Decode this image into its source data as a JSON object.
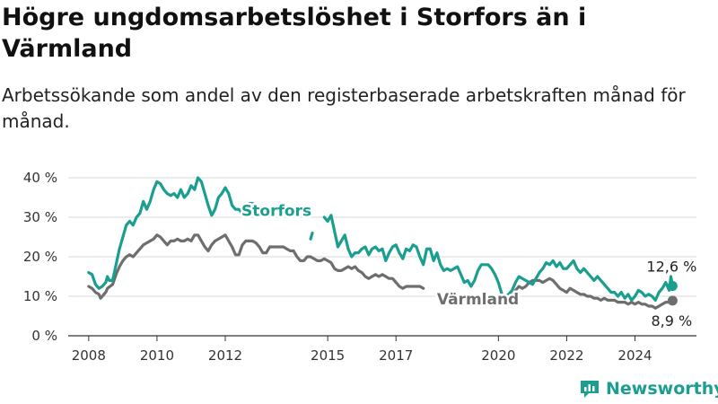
{
  "title": "Högre ungdomsarbetslöshet i Storfors än i Värmland",
  "subtitle": "Arbetssökande som andel av den registerbaserade arbetskraften månad för månad.",
  "brand": {
    "name": "Newsworthy",
    "icon": "newsworthy-logo-icon",
    "color": "#1a9e8f"
  },
  "chart_data": {
    "type": "line",
    "title": "Högre ungdomsarbetslöshet i Storfors än i Värmland",
    "subtitle": "Arbetssökande som andel av den registerbaserade arbetskraften månad för månad.",
    "xlabel": "",
    "ylabel": "",
    "x_ticks": [
      2008,
      2010,
      2012,
      2015,
      2017,
      2020,
      2022,
      2024
    ],
    "y_ticks": [
      "0 %",
      "10 %",
      "20 %",
      "30 %",
      "40 %"
    ],
    "xlim": [
      2007.4,
      2025.8
    ],
    "ylim": [
      0,
      40
    ],
    "grid": "horizontal",
    "legend": "inline labels",
    "series": [
      {
        "name": "Storfors",
        "color": "#1a9e8f",
        "end_label": "12,6 %",
        "points": [
          [
            2008.0,
            16
          ],
          [
            2008.1,
            15.5
          ],
          [
            2008.2,
            13
          ],
          [
            2008.3,
            12
          ],
          [
            2008.4,
            12.5
          ],
          [
            2008.5,
            13.5
          ],
          [
            2008.55,
            15
          ],
          [
            2008.6,
            14
          ],
          [
            2008.7,
            14
          ],
          [
            2008.8,
            18
          ],
          [
            2008.9,
            22
          ],
          [
            2009.0,
            25
          ],
          [
            2009.1,
            28
          ],
          [
            2009.2,
            29
          ],
          [
            2009.3,
            28
          ],
          [
            2009.4,
            30
          ],
          [
            2009.5,
            31
          ],
          [
            2009.6,
            34
          ],
          [
            2009.7,
            32
          ],
          [
            2009.8,
            34
          ],
          [
            2009.9,
            37
          ],
          [
            2010.0,
            39
          ],
          [
            2010.1,
            38.5
          ],
          [
            2010.2,
            37
          ],
          [
            2010.3,
            36
          ],
          [
            2010.4,
            35.5
          ],
          [
            2010.5,
            36
          ],
          [
            2010.6,
            35
          ],
          [
            2010.7,
            37
          ],
          [
            2010.8,
            35
          ],
          [
            2010.9,
            36
          ],
          [
            2011.0,
            38
          ],
          [
            2011.1,
            37
          ],
          [
            2011.2,
            40
          ],
          [
            2011.3,
            39
          ],
          [
            2011.4,
            36
          ],
          [
            2011.5,
            33
          ],
          [
            2011.6,
            30.5
          ],
          [
            2011.7,
            32
          ],
          [
            2011.8,
            35
          ],
          [
            2011.9,
            36
          ],
          [
            2012.0,
            37.5
          ],
          [
            2012.1,
            36
          ],
          [
            2012.2,
            33
          ],
          [
            2012.3,
            32
          ],
          [
            2012.4,
            32
          ],
          [
            2012.5,
            31
          ],
          [
            2012.6,
            32.5
          ],
          [
            2012.7,
            33.5
          ],
          [
            2012.8,
            33.5
          ],
          null,
          [
            2014.5,
            24.5
          ],
          [
            2014.55,
            26
          ],
          null,
          [
            2014.9,
            30
          ],
          [
            2015.0,
            29
          ],
          [
            2015.1,
            30.5
          ],
          [
            2015.2,
            26.5
          ],
          [
            2015.3,
            22.5
          ],
          [
            2015.4,
            24
          ],
          [
            2015.5,
            25.5
          ],
          [
            2015.6,
            22
          ],
          [
            2015.7,
            20
          ],
          [
            2015.8,
            21
          ],
          [
            2015.9,
            21
          ],
          [
            2016.0,
            22
          ],
          [
            2016.1,
            22.5
          ],
          [
            2016.2,
            20.5
          ],
          [
            2016.3,
            22
          ],
          [
            2016.4,
            22.5
          ],
          [
            2016.5,
            21.5
          ],
          [
            2016.6,
            22
          ],
          [
            2016.7,
            19
          ],
          [
            2016.8,
            21
          ],
          [
            2016.9,
            22.5
          ],
          [
            2017.0,
            23
          ],
          [
            2017.1,
            21
          ],
          [
            2017.2,
            19.5
          ],
          [
            2017.3,
            22
          ],
          [
            2017.4,
            21.5
          ],
          [
            2017.5,
            23
          ],
          [
            2017.6,
            22.5
          ],
          [
            2017.7,
            20
          ],
          [
            2017.8,
            18
          ],
          [
            2017.9,
            22
          ],
          [
            2018.0,
            22
          ],
          [
            2018.1,
            19
          ],
          [
            2018.2,
            21
          ],
          [
            2018.3,
            18
          ],
          [
            2018.4,
            16.5
          ],
          [
            2018.5,
            17
          ],
          [
            2018.6,
            16.5
          ],
          [
            2018.7,
            17
          ],
          [
            2018.8,
            17.5
          ],
          [
            2018.9,
            15.5
          ],
          [
            2019.0,
            13.5
          ],
          [
            2019.1,
            14
          ],
          [
            2019.2,
            12.5
          ],
          [
            2019.3,
            14
          ],
          [
            2019.4,
            16.5
          ],
          [
            2019.5,
            18
          ],
          [
            2019.6,
            18
          ],
          [
            2019.7,
            18
          ],
          [
            2019.8,
            17
          ],
          [
            2019.9,
            15.5
          ],
          [
            2020.0,
            13.5
          ],
          [
            2020.1,
            10.5
          ],
          [
            2020.2,
            10
          ],
          [
            2020.3,
            10.5
          ],
          [
            2020.4,
            11.5
          ],
          [
            2020.5,
            13.5
          ],
          [
            2020.6,
            15
          ],
          [
            2020.7,
            14.5
          ],
          [
            2020.8,
            14
          ],
          [
            2020.9,
            13.5
          ],
          [
            2021.0,
            13
          ],
          [
            2021.1,
            14.5
          ],
          [
            2021.2,
            16
          ],
          [
            2021.3,
            17
          ],
          [
            2021.4,
            18.5
          ],
          [
            2021.5,
            18
          ],
          [
            2021.6,
            19
          ],
          [
            2021.7,
            17.5
          ],
          [
            2021.8,
            18.5
          ],
          [
            2021.9,
            17
          ],
          [
            2022.0,
            17
          ],
          [
            2022.1,
            18
          ],
          [
            2022.2,
            19
          ],
          [
            2022.3,
            17
          ],
          [
            2022.4,
            16
          ],
          [
            2022.5,
            17
          ],
          [
            2022.6,
            16
          ],
          [
            2022.7,
            15
          ],
          [
            2022.8,
            14
          ],
          [
            2022.9,
            15
          ],
          [
            2023.0,
            14
          ],
          [
            2023.1,
            13
          ],
          [
            2023.2,
            12
          ],
          [
            2023.3,
            11
          ],
          [
            2023.4,
            11
          ],
          [
            2023.5,
            10
          ],
          [
            2023.6,
            11
          ],
          [
            2023.7,
            9.5
          ],
          [
            2023.8,
            10.5
          ],
          [
            2023.9,
            9
          ],
          [
            2024.0,
            10
          ],
          [
            2024.1,
            11.5
          ],
          [
            2024.2,
            11
          ],
          [
            2024.3,
            10
          ],
          [
            2024.4,
            10.5
          ],
          [
            2024.5,
            10
          ],
          [
            2024.6,
            9
          ],
          [
            2024.7,
            11
          ],
          [
            2024.8,
            12
          ],
          [
            2024.9,
            13.5
          ],
          [
            2025.0,
            11.5
          ],
          [
            2025.05,
            15
          ],
          [
            2025.1,
            12.6
          ]
        ]
      },
      {
        "name": "Värmland",
        "color": "#6e6e6e",
        "end_label": "8,9 %",
        "points": [
          [
            2008.0,
            12.5
          ],
          [
            2008.1,
            12
          ],
          [
            2008.2,
            11
          ],
          [
            2008.3,
            10.5
          ],
          [
            2008.35,
            9.5
          ],
          [
            2008.5,
            11
          ],
          [
            2008.55,
            12
          ],
          [
            2008.7,
            13
          ],
          [
            2008.8,
            15.5
          ],
          [
            2008.9,
            17.5
          ],
          [
            2009.0,
            19
          ],
          [
            2009.1,
            20
          ],
          [
            2009.2,
            20.5
          ],
          [
            2009.3,
            20
          ],
          [
            2009.4,
            21
          ],
          [
            2009.5,
            22
          ],
          [
            2009.6,
            23
          ],
          [
            2009.7,
            23.5
          ],
          [
            2009.8,
            24
          ],
          [
            2009.9,
            24.5
          ],
          [
            2010.0,
            25.5
          ],
          [
            2010.1,
            25
          ],
          [
            2010.2,
            24
          ],
          [
            2010.3,
            23
          ],
          [
            2010.4,
            24
          ],
          [
            2010.5,
            24
          ],
          [
            2010.6,
            24.5
          ],
          [
            2010.7,
            24
          ],
          [
            2010.8,
            24
          ],
          [
            2010.9,
            24.5
          ],
          [
            2011.0,
            24
          ],
          [
            2011.1,
            25.5
          ],
          [
            2011.2,
            25.5
          ],
          [
            2011.3,
            24
          ],
          [
            2011.4,
            22.5
          ],
          [
            2011.5,
            21.5
          ],
          [
            2011.6,
            23
          ],
          [
            2011.7,
            24
          ],
          [
            2011.8,
            24.5
          ],
          [
            2011.9,
            25
          ],
          [
            2012.0,
            25.5
          ],
          [
            2012.1,
            24
          ],
          [
            2012.2,
            22.5
          ],
          [
            2012.3,
            20.5
          ],
          [
            2012.4,
            20.5
          ],
          [
            2012.5,
            23
          ],
          [
            2012.6,
            24
          ],
          [
            2012.7,
            24
          ],
          [
            2012.8,
            24
          ],
          [
            2012.9,
            23.5
          ],
          [
            2013.0,
            22.5
          ],
          [
            2013.1,
            21
          ],
          [
            2013.2,
            21
          ],
          [
            2013.3,
            22.5
          ],
          [
            2013.4,
            22.5
          ],
          [
            2013.5,
            22.5
          ],
          [
            2013.6,
            22.5
          ],
          [
            2013.7,
            22.5
          ],
          [
            2013.8,
            22
          ],
          [
            2013.9,
            21.5
          ],
          [
            2014.0,
            21.5
          ],
          [
            2014.1,
            20
          ],
          [
            2014.2,
            19
          ],
          [
            2014.3,
            19
          ],
          [
            2014.4,
            20
          ],
          [
            2014.5,
            20
          ],
          [
            2014.6,
            19.5
          ],
          [
            2014.7,
            19
          ],
          [
            2014.8,
            19
          ],
          [
            2014.9,
            19.5
          ],
          [
            2015.0,
            19
          ],
          [
            2015.1,
            18.5
          ],
          [
            2015.2,
            17
          ],
          [
            2015.3,
            16.5
          ],
          [
            2015.4,
            16.5
          ],
          [
            2015.5,
            17
          ],
          [
            2015.6,
            17.5
          ],
          [
            2015.7,
            17
          ],
          [
            2015.8,
            17.5
          ],
          [
            2015.9,
            16.5
          ],
          [
            2016.0,
            16
          ],
          [
            2016.1,
            15
          ],
          [
            2016.2,
            14.5
          ],
          [
            2016.3,
            15
          ],
          [
            2016.4,
            15.5
          ],
          [
            2016.5,
            15
          ],
          [
            2016.6,
            15.5
          ],
          [
            2016.7,
            15
          ],
          [
            2016.8,
            14.5
          ],
          [
            2016.9,
            14.5
          ],
          [
            2017.0,
            13.5
          ],
          [
            2017.1,
            12.5
          ],
          [
            2017.2,
            12
          ],
          [
            2017.3,
            12.5
          ],
          [
            2017.4,
            12.5
          ],
          [
            2017.5,
            12.5
          ],
          [
            2017.6,
            12.5
          ],
          [
            2017.7,
            12.5
          ],
          [
            2017.8,
            12
          ],
          null,
          [
            2020.1,
            10
          ],
          [
            2020.2,
            9
          ],
          [
            2020.3,
            9
          ],
          [
            2020.4,
            10
          ],
          [
            2020.5,
            11.5
          ],
          [
            2020.6,
            12.5
          ],
          [
            2020.7,
            12
          ],
          [
            2020.8,
            12.5
          ],
          [
            2020.9,
            13.5
          ],
          [
            2021.0,
            14
          ],
          [
            2021.1,
            14
          ],
          [
            2021.2,
            14
          ],
          [
            2021.3,
            13.5
          ],
          [
            2021.4,
            14
          ],
          [
            2021.5,
            14.5
          ],
          [
            2021.6,
            14
          ],
          [
            2021.7,
            13
          ],
          [
            2021.8,
            12
          ],
          [
            2021.9,
            11.5
          ],
          [
            2022.0,
            11
          ],
          [
            2022.1,
            12
          ],
          [
            2022.2,
            11.5
          ],
          [
            2022.3,
            11
          ],
          [
            2022.4,
            10.5
          ],
          [
            2022.5,
            10.5
          ],
          [
            2022.6,
            10
          ],
          [
            2022.7,
            10
          ],
          [
            2022.8,
            9.5
          ],
          [
            2022.9,
            9.5
          ],
          [
            2023.0,
            9
          ],
          [
            2023.1,
            9.5
          ],
          [
            2023.2,
            9
          ],
          [
            2023.3,
            9
          ],
          [
            2023.4,
            9
          ],
          [
            2023.5,
            8.5
          ],
          [
            2023.6,
            8.5
          ],
          [
            2023.7,
            8.5
          ],
          [
            2023.8,
            8
          ],
          [
            2023.9,
            8.5
          ],
          [
            2024.0,
            8
          ],
          [
            2024.1,
            8.5
          ],
          [
            2024.2,
            8
          ],
          [
            2024.3,
            8
          ],
          [
            2024.4,
            7.5
          ],
          [
            2024.5,
            7.5
          ],
          [
            2024.6,
            7
          ],
          [
            2024.7,
            7.5
          ],
          [
            2024.8,
            8
          ],
          [
            2024.9,
            8.5
          ],
          [
            2025.0,
            8.5
          ],
          [
            2025.1,
            8.9
          ]
        ]
      }
    ]
  }
}
